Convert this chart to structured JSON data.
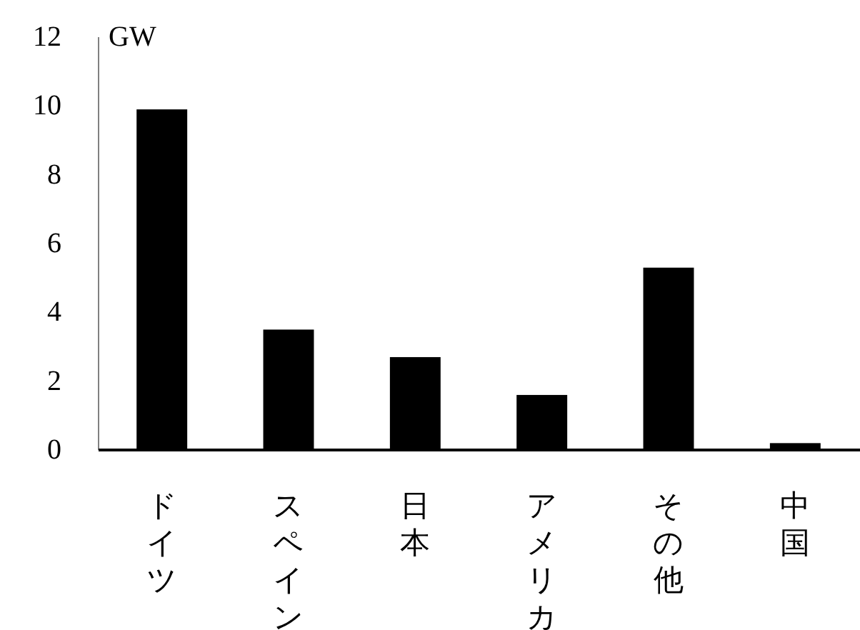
{
  "chart_data": {
    "type": "bar",
    "ylabel": "GW",
    "categories": [
      "ドイツ",
      "スペイン",
      "日本",
      "アメリカ",
      "その他",
      "中国"
    ],
    "values": [
      9.9,
      3.5,
      2.7,
      1.6,
      5.3,
      0.2
    ],
    "color": "#000000",
    "ylim": [
      0,
      12
    ],
    "yticks": [
      0,
      2,
      4,
      6,
      8,
      10,
      12
    ],
    "grid": false
  }
}
